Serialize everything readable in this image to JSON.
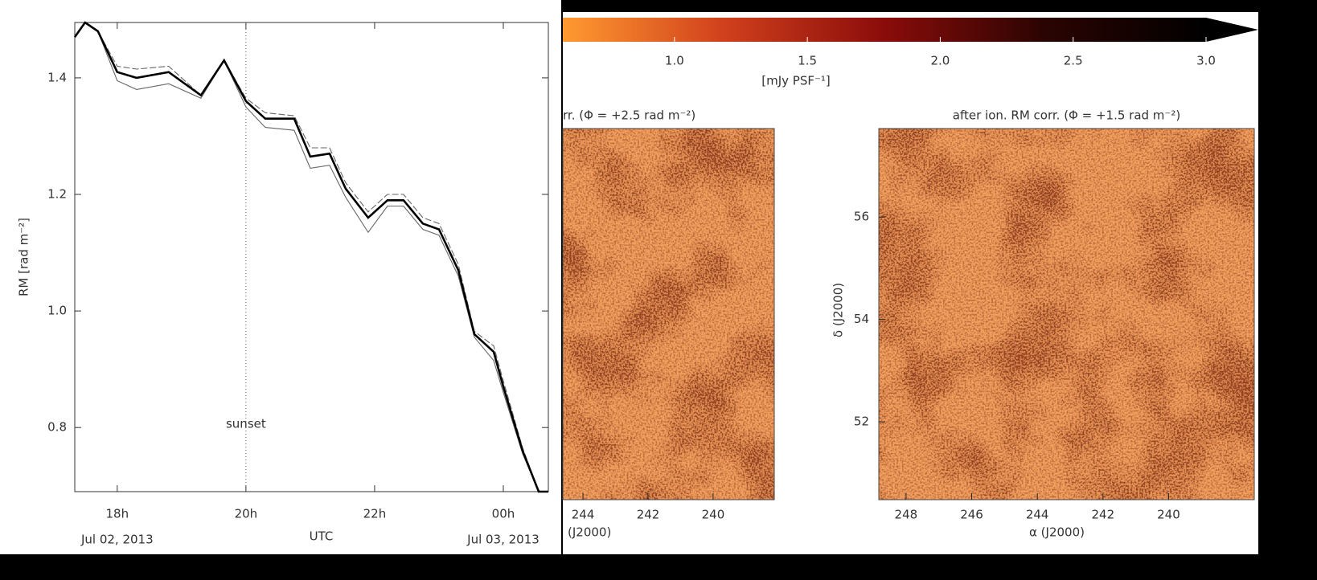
{
  "chart_data": [
    {
      "type": "line",
      "ylabel": "RM [rad m⁻²]",
      "xlabel": "UTC",
      "x": [
        17.34,
        17.5,
        17.7,
        18.0,
        18.3,
        18.8,
        19.3,
        19.66,
        20.0,
        20.3,
        20.75,
        21.0,
        21.3,
        21.55,
        21.9,
        22.2,
        22.45,
        22.75,
        23.0,
        23.3,
        23.55,
        23.85,
        24.0,
        24.3,
        24.55,
        24.7
      ],
      "series": [
        {
          "color": "#666666",
          "values": [
            1.47,
            1.495,
            1.48,
            1.42,
            1.415,
            1.42,
            1.37,
            1.43,
            1.365,
            1.34,
            1.335,
            1.28,
            1.28,
            1.22,
            1.17,
            1.2,
            1.2,
            1.16,
            1.15,
            1.08,
            0.965,
            0.94,
            0.88,
            0.765,
            0.69,
            0.69
          ]
        },
        {
          "color": "#666666",
          "values": [
            1.47,
            1.495,
            1.48,
            1.395,
            1.38,
            1.39,
            1.365,
            1.43,
            1.35,
            1.315,
            1.31,
            1.245,
            1.25,
            1.195,
            1.135,
            1.18,
            1.18,
            1.14,
            1.13,
            1.06,
            0.955,
            0.915,
            0.86,
            0.755,
            0.69,
            0.69
          ]
        },
        {
          "color": "#000000",
          "values": [
            1.47,
            1.495,
            1.48,
            1.41,
            1.4,
            1.41,
            1.37,
            1.43,
            1.36,
            1.33,
            1.33,
            1.265,
            1.27,
            1.21,
            1.16,
            1.19,
            1.19,
            1.15,
            1.14,
            1.07,
            0.96,
            0.93,
            0.87,
            0.76,
            0.69,
            0.69
          ]
        }
      ],
      "xlim": [
        17.34,
        24.7
      ],
      "xticks": [
        {
          "value": 18,
          "label": "18h"
        },
        {
          "value": 20,
          "label": "20h"
        },
        {
          "value": 22,
          "label": "22h"
        },
        {
          "value": 24,
          "label": "00h"
        }
      ],
      "date_labels": [
        {
          "value": 18,
          "label": "Jul 02, 2013"
        },
        {
          "value": 24,
          "label": "Jul 03, 2013"
        }
      ],
      "ylim": [
        0.69,
        1.495
      ],
      "yticks": [
        {
          "value": 0.8,
          "label": "0.8"
        },
        {
          "value": 1.0,
          "label": "1.0"
        },
        {
          "value": 1.2,
          "label": "1.2"
        },
        {
          "value": 1.4,
          "label": "1.4"
        }
      ],
      "annotation": {
        "label": "sunset",
        "x": 20
      }
    },
    {
      "type": "colorbar",
      "label": "[mJy PSF⁻¹]",
      "clim": [
        0.58,
        3.0
      ],
      "colors": [
        "#ff9a30",
        "#d0401c",
        "#8a0c0a",
        "#2a0402",
        "#000000"
      ],
      "ticks": [
        {
          "value": 1.0,
          "label": "1.0"
        },
        {
          "value": 1.5,
          "label": "1.5"
        },
        {
          "value": 2.0,
          "label": "2.0"
        },
        {
          "value": 2.5,
          "label": "2.5"
        },
        {
          "value": 3.0,
          "label": "3.0"
        }
      ]
    },
    {
      "type": "image",
      "title": "rr. (Φ = +2.5 rad m⁻²)",
      "xlabel": "(J2000)",
      "xlim": [
        244.62,
        238.12
      ],
      "xticks": [
        244,
        242,
        240
      ]
    },
    {
      "type": "image",
      "title": "after ion. RM corr. (Φ = +1.5 rad m⁻²)",
      "xlabel": "α (J2000)",
      "ylabel": "δ (J2000)",
      "xlim": [
        248.83,
        237.39
      ],
      "xticks": [
        248,
        246,
        244,
        242,
        240
      ],
      "ylim": [
        50.48,
        57.73
      ],
      "yticks": [
        52,
        54,
        56
      ]
    }
  ]
}
